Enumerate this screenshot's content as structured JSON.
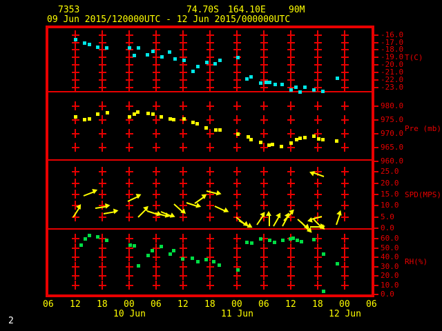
{
  "header": {
    "station_id": "7353",
    "latitude": "74.70S",
    "longitude": "164.10E",
    "elevation": "90M",
    "period": "09 Jun 2015/120000UTC - 12 Jun 2015/000000UTC"
  },
  "footer": {
    "page_number": "2"
  },
  "colors": {
    "background": "#000000",
    "frame": "#e80000",
    "axis_text": "#e80000",
    "time_text": "#ffff00",
    "temperature": "#00e6e6",
    "pressure": "#ffff00",
    "wind": "#ffff00",
    "humidity": "#00dd44",
    "page_number": "#ffffff"
  },
  "chart_data": {
    "type": "meteogram",
    "x_axis": {
      "unit": "hours since 09 Jun 2015 00UTC",
      "range_hours": [
        6,
        78
      ],
      "tick_step_hours": 6,
      "tick_labels": [
        "06",
        "12",
        "18",
        "00",
        "06",
        "12",
        "18",
        "00",
        "06",
        "12",
        "18",
        "00",
        "06"
      ],
      "date_labels": [
        {
          "label": "10 Jun",
          "tick_index": 3
        },
        {
          "label": "11 Jun",
          "tick_index": 7
        },
        {
          "label": "12 Jun",
          "tick_index": 11
        }
      ]
    },
    "panels": [
      {
        "id": "temperature",
        "type": "scatter",
        "ylabel": "T(C)",
        "color": "#00e6e6",
        "yticks": [
          -16,
          -17,
          -18,
          -19,
          -20,
          -21,
          -22,
          -23
        ],
        "ylim": [
          -23.5,
          -15.1
        ],
        "points": [
          [
            12.0,
            -16.6
          ],
          [
            14.0,
            -17.0
          ],
          [
            15.1,
            -17.2
          ],
          [
            16.9,
            -17.6
          ],
          [
            18.9,
            -17.7
          ],
          [
            24.0,
            -17.7
          ],
          [
            25.0,
            -18.7
          ],
          [
            26.0,
            -17.7
          ],
          [
            28.0,
            -18.6
          ],
          [
            29.2,
            -18.1
          ],
          [
            31.2,
            -18.9
          ],
          [
            32.9,
            -18.2
          ],
          [
            34.1,
            -19.2
          ],
          [
            36.1,
            -19.3
          ],
          [
            38.1,
            -20.8
          ],
          [
            39.2,
            -20.2
          ],
          [
            41.2,
            -19.6
          ],
          [
            43.0,
            -19.8
          ],
          [
            44.2,
            -19.3
          ],
          [
            48.1,
            -19.0
          ],
          [
            50.2,
            -21.8
          ],
          [
            51.1,
            -21.6
          ],
          [
            53.3,
            -22.4
          ],
          [
            54.5,
            -22.3
          ],
          [
            55.3,
            -22.3
          ],
          [
            56.4,
            -22.6
          ],
          [
            58.0,
            -22.6
          ],
          [
            60.0,
            -23.3
          ],
          [
            61.1,
            -22.9
          ],
          [
            62.0,
            -23.6
          ],
          [
            63.1,
            -22.9
          ],
          [
            65.1,
            -23.3
          ],
          [
            67.1,
            -23.5
          ],
          [
            70.3,
            -21.7
          ]
        ]
      },
      {
        "id": "pressure",
        "type": "scatter",
        "ylabel": "Pre (mb)",
        "color": "#ffff00",
        "yticks": [
          980,
          975,
          970,
          965,
          960
        ],
        "ylim": [
          960.75,
          985
        ],
        "points": [
          [
            12.0,
            976.2
          ],
          [
            14.0,
            975.2
          ],
          [
            15.0,
            975.6
          ],
          [
            16.9,
            977.3
          ],
          [
            19.0,
            977.8
          ],
          [
            24.0,
            976.3
          ],
          [
            25.0,
            977.3
          ],
          [
            25.9,
            977.9
          ],
          [
            28.1,
            977.6
          ],
          [
            29.2,
            977.3
          ],
          [
            31.1,
            976.3
          ],
          [
            33.1,
            975.4
          ],
          [
            33.9,
            975.2
          ],
          [
            36.1,
            975.6
          ],
          [
            38.2,
            974.3
          ],
          [
            39.1,
            973.8
          ],
          [
            41.0,
            972.3
          ],
          [
            43.2,
            971.6
          ],
          [
            44.1,
            971.5
          ],
          [
            48.1,
            969.9
          ],
          [
            50.4,
            968.9
          ],
          [
            51.1,
            968.1
          ],
          [
            53.2,
            967.0
          ],
          [
            55.0,
            966.0
          ],
          [
            55.9,
            966.2
          ],
          [
            57.9,
            965.6
          ],
          [
            60.0,
            966.7
          ],
          [
            61.2,
            968.1
          ],
          [
            62.0,
            968.5
          ],
          [
            63.1,
            968.8
          ],
          [
            65.0,
            969.2
          ],
          [
            66.1,
            968.3
          ],
          [
            67.1,
            968.1
          ],
          [
            70.1,
            967.4
          ]
        ]
      },
      {
        "id": "wind",
        "type": "vector",
        "ylabel": "SPD(MPS)",
        "color": "#ffff00",
        "yticks": [
          25,
          20,
          15,
          10,
          5,
          0
        ],
        "ylim": [
          0,
          30
        ],
        "points_format": [
          "hour",
          "speed_mps",
          "arrow_angle_deg_ccw_from_east"
        ],
        "points": [
          [
            11.5,
            4.8,
            57
          ],
          [
            13.8,
            14.4,
            21
          ],
          [
            16.5,
            9.0,
            9
          ],
          [
            18.3,
            6.3,
            10
          ],
          [
            23.7,
            12.0,
            25
          ],
          [
            26.0,
            4.8,
            45
          ],
          [
            28.0,
            7.8,
            -18
          ],
          [
            29.9,
            6.7,
            -15
          ],
          [
            31.1,
            7.2,
            -23
          ],
          [
            34.0,
            10.8,
            -42
          ],
          [
            36.8,
            11.4,
            -18
          ],
          [
            38.6,
            10.9,
            35
          ],
          [
            41.3,
            16.5,
            -14
          ],
          [
            43.0,
            9.9,
            -25
          ],
          [
            47.9,
            4.9,
            -39
          ],
          [
            48.4,
            3.4,
            -30
          ],
          [
            52.5,
            1.4,
            56
          ],
          [
            55.2,
            0.9,
            90
          ],
          [
            56.1,
            0.9,
            60
          ],
          [
            58.2,
            0.9,
            61
          ],
          [
            58.5,
            3.4,
            45
          ],
          [
            61.5,
            4.1,
            -42
          ],
          [
            62.3,
            2.8,
            -48
          ],
          [
            64.3,
            0.6,
            0
          ],
          [
            65.1,
            3.9,
            -45
          ],
          [
            66.9,
            5.1,
            195
          ],
          [
            67.4,
            23.1,
            160
          ],
          [
            70.2,
            1.4,
            71
          ]
        ]
      },
      {
        "id": "humidity",
        "type": "scatter",
        "ylabel": "RH(%)",
        "color": "#00dd44",
        "yticks": [
          60,
          50,
          40,
          30,
          20,
          10,
          0
        ],
        "ylim": [
          0,
          70
        ],
        "points": [
          [
            13.3,
            53.5
          ],
          [
            14.2,
            60.5
          ],
          [
            15.1,
            63.7
          ],
          [
            16.9,
            62.7
          ],
          [
            18.9,
            58.5
          ],
          [
            24.1,
            53.5
          ],
          [
            25.1,
            53.0
          ],
          [
            26.0,
            31.4
          ],
          [
            28.1,
            42.6
          ],
          [
            29.0,
            47.5
          ],
          [
            31.1,
            52.3
          ],
          [
            33.0,
            43.6
          ],
          [
            33.9,
            47.3
          ],
          [
            35.9,
            38.9
          ],
          [
            38.0,
            39.3
          ],
          [
            39.2,
            36.1
          ],
          [
            41.0,
            38.1
          ],
          [
            42.8,
            35.6
          ],
          [
            44.0,
            31.9
          ],
          [
            48.2,
            27.0
          ],
          [
            50.2,
            56.8
          ],
          [
            51.2,
            56.0
          ],
          [
            53.3,
            60.0
          ],
          [
            55.2,
            59.0
          ],
          [
            56.3,
            56.8
          ],
          [
            58.1,
            58.5
          ],
          [
            59.8,
            60.0
          ],
          [
            60.5,
            60.9
          ],
          [
            61.4,
            59.2
          ],
          [
            62.3,
            57.5
          ],
          [
            65.1,
            59.4
          ],
          [
            67.3,
            43.6
          ],
          [
            67.3,
            3.4
          ],
          [
            70.3,
            33.7
          ]
        ]
      }
    ]
  }
}
